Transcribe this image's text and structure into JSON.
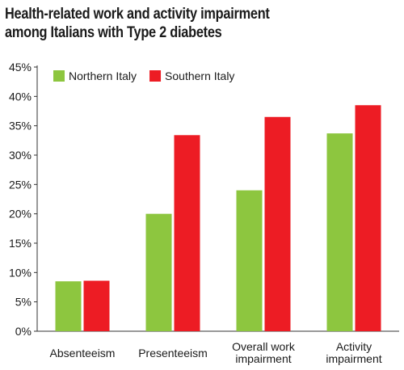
{
  "title_lines": [
    "Health-related work and activity impairment",
    "among Italians with Type 2 diabetes"
  ],
  "chart_data": {
    "type": "bar",
    "title": "Health-related work and activity impairment among Italians with Type 2 diabetes",
    "categories": [
      [
        "Absenteeism"
      ],
      [
        "Presenteeism"
      ],
      [
        "Overall work",
        "impairment"
      ],
      [
        "Activity",
        "impairment"
      ]
    ],
    "series": [
      {
        "name": "Northern Italy",
        "color": "#8dc63f",
        "values": [
          8.5,
          20.0,
          24.0,
          33.7
        ]
      },
      {
        "name": "Southern Italy",
        "color": "#ed1c24",
        "values": [
          8.6,
          33.4,
          36.5,
          38.5
        ]
      }
    ],
    "ylim": [
      0,
      45
    ],
    "yticks": [
      "0%",
      "5%",
      "10%",
      "15%",
      "20%",
      "25%",
      "30%",
      "35%",
      "40%",
      "45%"
    ],
    "xlabel": "",
    "ylabel": "",
    "grid": false,
    "legend": "top-left"
  }
}
